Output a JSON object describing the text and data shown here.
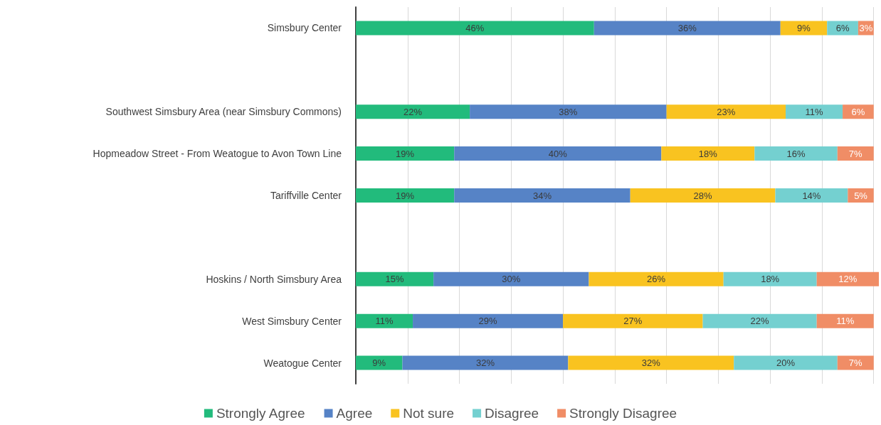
{
  "chart_data": {
    "type": "bar",
    "orientation": "horizontal",
    "stacked": true,
    "categories": [
      "Simsbury Center",
      null,
      "Southwest Simsbury Area (near Simsbury Commons)",
      "Hopmeadow Street - From Weatogue to Avon Town Line",
      "Tariffville Center",
      null,
      "Hoskins / North Simsbury Area",
      "West Simsbury Center",
      "Weatogue Center"
    ],
    "series": [
      {
        "name": "Strongly Agree",
        "color": "#22bb7c",
        "values": [
          46,
          null,
          22,
          19,
          19,
          null,
          15,
          11,
          9
        ],
        "value_labels": [
          "46%",
          null,
          "22%",
          "19%",
          "19%",
          null,
          "15%",
          "11%",
          "9%"
        ]
      },
      {
        "name": "Agree",
        "color": "#5683c6",
        "values": [
          36,
          null,
          38,
          40,
          34,
          null,
          30,
          29,
          32
        ],
        "value_labels": [
          "36%",
          null,
          "38%",
          "40%",
          "34%",
          null,
          "30%",
          "29%",
          "32%"
        ]
      },
      {
        "name": "Not sure",
        "color": "#f9c320",
        "values": [
          9,
          null,
          23,
          18,
          28,
          null,
          26,
          27,
          32
        ],
        "value_labels": [
          "9%",
          null,
          "23%",
          "18%",
          "28%",
          null,
          "26%",
          "27%",
          "32%"
        ]
      },
      {
        "name": "Disagree",
        "color": "#74d0d0",
        "values": [
          6,
          null,
          11,
          16,
          14,
          null,
          18,
          22,
          20
        ],
        "value_labels": [
          "6%",
          null,
          "11%",
          "16%",
          "14%",
          null,
          "18%",
          "22%",
          "20%"
        ]
      },
      {
        "name": "Strongly Disagree",
        "color": "#f08d66",
        "values": [
          3,
          null,
          6,
          7,
          5,
          null,
          12,
          11,
          7
        ],
        "value_labels": [
          "3%",
          null,
          "6%",
          "7%",
          "5%",
          null,
          "12%",
          "11%",
          "7%"
        ]
      }
    ],
    "xlim": [
      0,
      101
    ],
    "xticks": [
      {
        "value": 0,
        "label": null
      },
      {
        "value": 10,
        "label": null
      },
      {
        "value": 20,
        "label": null
      },
      {
        "value": 30,
        "label": null
      },
      {
        "value": 40,
        "label": null
      },
      {
        "value": 50,
        "label": null
      },
      {
        "value": 60,
        "label": null
      },
      {
        "value": 70,
        "label": null
      },
      {
        "value": 80,
        "label": null
      },
      {
        "value": 90,
        "label": null
      },
      {
        "value": 100,
        "label": null
      }
    ],
    "grid": "x",
    "legend": "bottom",
    "tick_labels": "y"
  }
}
